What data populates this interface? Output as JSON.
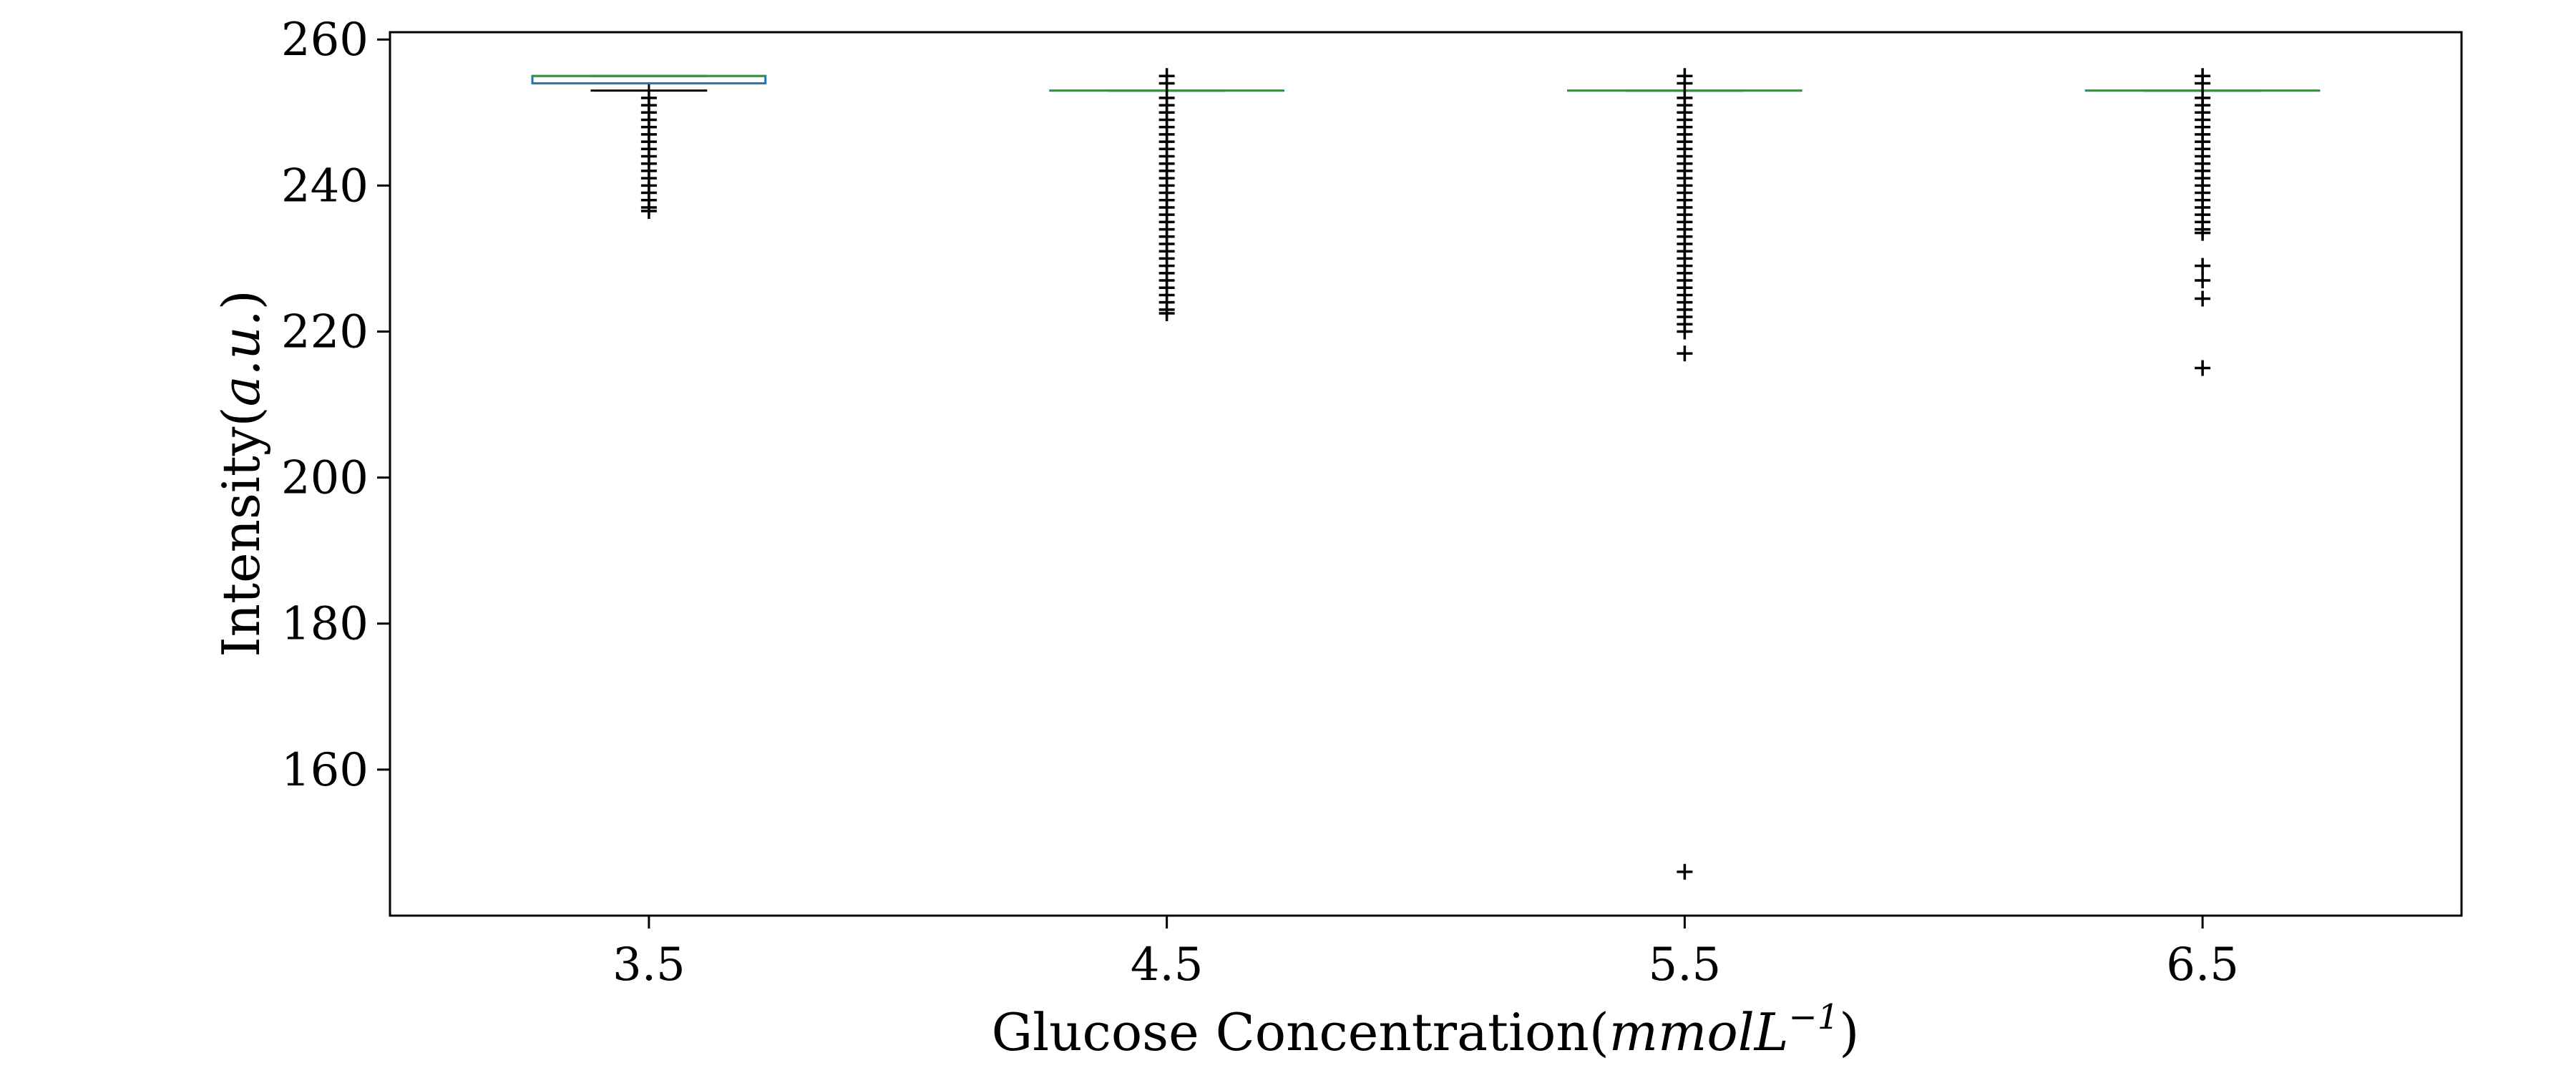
{
  "chart_data": {
    "type": "box",
    "title": "",
    "xlabel": {
      "prefix": "Glucose Concentration(",
      "var": "mmolL",
      "sup": "−1",
      "suffix": ")"
    },
    "ylabel": {
      "prefix": "Intensity(",
      "var": "a.u.",
      "suffix": ")"
    },
    "categories": [
      "3.5",
      "4.5",
      "5.5",
      "6.5"
    ],
    "ylim": [
      140,
      261
    ],
    "yticks": [
      160,
      180,
      200,
      220,
      240,
      260
    ],
    "grid": false,
    "boxes": [
      {
        "category": "3.5",
        "q1": 254,
        "median": 255,
        "q3": 255,
        "whisker_low": 253,
        "whisker_high": 255,
        "outliers": [
          252,
          251,
          250,
          249,
          248,
          247,
          246,
          245,
          244,
          243,
          242,
          241,
          240,
          239,
          238,
          237,
          236.5
        ]
      },
      {
        "category": "4.5",
        "q1": 253,
        "median": 253,
        "q3": 253,
        "whisker_low": 253,
        "whisker_high": 253,
        "outliers": [
          255,
          254,
          252,
          251,
          250,
          249,
          248,
          247,
          246,
          245,
          244,
          243,
          242,
          241,
          240,
          239,
          238,
          237,
          236,
          235,
          234,
          233,
          232,
          231,
          230,
          229,
          228,
          227,
          226,
          225,
          224,
          223,
          222.5
        ]
      },
      {
        "category": "5.5",
        "q1": 253,
        "median": 253,
        "q3": 253,
        "whisker_low": 253,
        "whisker_high": 253,
        "outliers": [
          255,
          254,
          252,
          251,
          250,
          249,
          248,
          247,
          246,
          245,
          244,
          243,
          242,
          241,
          240,
          239,
          238,
          237,
          236,
          235,
          234,
          233,
          232,
          231,
          230,
          229,
          228,
          227,
          226,
          225,
          224,
          223,
          222,
          221,
          220,
          217,
          146
        ]
      },
      {
        "category": "6.5",
        "q1": 253,
        "median": 253,
        "q3": 253,
        "whisker_low": 253,
        "whisker_high": 253,
        "outliers": [
          255,
          254,
          252,
          251,
          250,
          249,
          248,
          247,
          246,
          245,
          244,
          243,
          242,
          241,
          240,
          239,
          238,
          237,
          236,
          235,
          234,
          233.5,
          229,
          227,
          224.5,
          215
        ]
      }
    ],
    "colors": {
      "box": "#1f77b4",
      "median": "#2ca02c",
      "whisker": "#000000",
      "flier": "#000000"
    }
  }
}
